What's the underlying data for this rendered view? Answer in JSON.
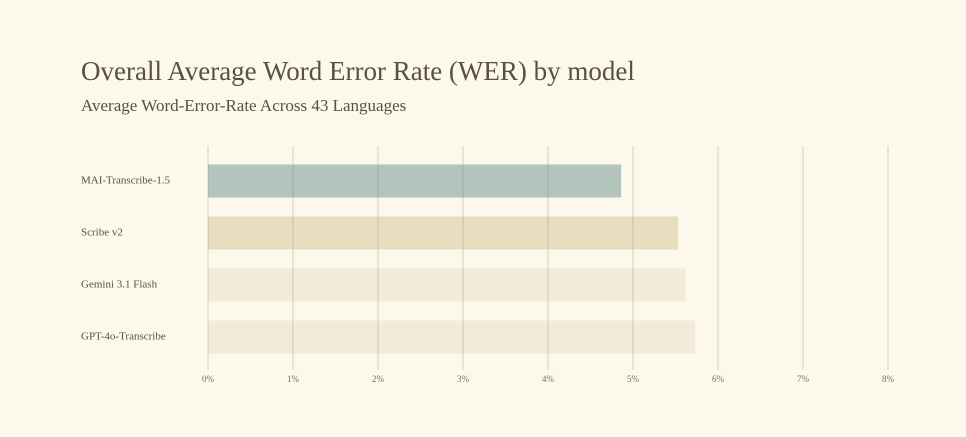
{
  "chart_data": {
    "type": "hbar",
    "title": "Overall Average Word Error Rate (WER) by model",
    "subtitle": "Average Word-Error-Rate Across 43 Languages",
    "categories": [
      "MAI-Transcribe-1.5",
      "Scribe v2",
      "Gemini 3.1 Flash",
      "GPT-4o-Transcribe"
    ],
    "values": [
      4.86,
      5.53,
      5.62,
      5.73
    ],
    "colors": [
      "#b3c4bc",
      "#e9ddc0",
      "#f3eada",
      "#f3eada"
    ],
    "xlim": [
      0,
      8
    ],
    "xticks": [
      {
        "value": 0,
        "label": "0%"
      },
      {
        "value": 1,
        "label": "1%"
      },
      {
        "value": 2,
        "label": "2%"
      },
      {
        "value": 3,
        "label": "3%"
      },
      {
        "value": 4,
        "label": "4%"
      },
      {
        "value": 5,
        "label": "5%"
      },
      {
        "value": 6,
        "label": "6%"
      },
      {
        "value": 7,
        "label": "7%"
      },
      {
        "value": 8,
        "label": "8%"
      }
    ],
    "grid": true
  }
}
